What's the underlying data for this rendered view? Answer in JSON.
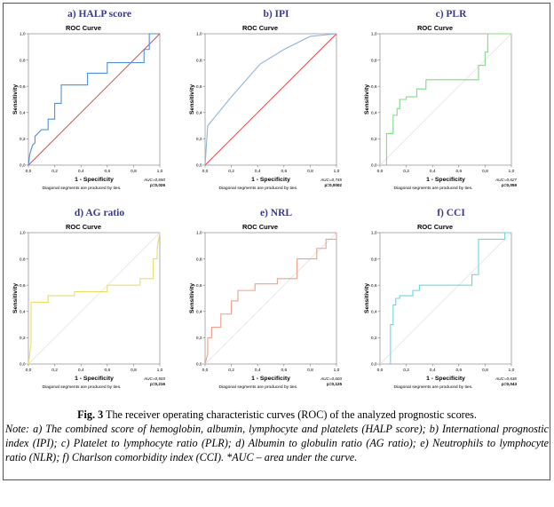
{
  "figure": {
    "caption_label": "Fig. 3",
    "caption_title": " The receiver operating characteristic curves (ROC) of the analyzed prognostic scores.",
    "note": "Note: a) The combined score of hemoglobin, albumin, lymphocyte and platelets (HALP score); b) International prognostic index (IPI); c) Platelet to lymphocyte ratio (PLR); d) Albumin to globulin ratio (AG ratio); e) Neutrophils to lymphocyte ratio (NLR); f) Charlson comorbidity index (CCI). *AUC – area under the curve."
  },
  "chart_data": [
    {
      "type": "line",
      "panel_label": "a) HALP score",
      "title": "ROC Curve",
      "xlabel": "1 - Specificity",
      "ylabel": "Sensitivity",
      "xlim": [
        0,
        1
      ],
      "ylim": [
        0,
        1
      ],
      "xticks": [
        "0,0",
        "0,2",
        "0,4",
        "0,6",
        "0,8",
        "1,0"
      ],
      "yticks": [
        "0,0",
        "0,2",
        "0,4",
        "0,6",
        "0,8",
        "1,0"
      ],
      "footnote": "Diagonal segments are produced by ties.",
      "auc_label": "AUC=0,650",
      "p_label": "p=0,026",
      "colors": {
        "curve": "#4f8fd6",
        "reference": "#e03a3a"
      },
      "reference_line": true,
      "series": [
        {
          "x": [
            0,
            0.01,
            0.03,
            0.05,
            0.05,
            0.08,
            0.1,
            0.15,
            0.15,
            0.2,
            0.2,
            0.25,
            0.25,
            0.45,
            0.45,
            0.6,
            0.6,
            0.88,
            0.88,
            0.92,
            0.92,
            1.0
          ],
          "y": [
            0,
            0.08,
            0.15,
            0.17,
            0.22,
            0.25,
            0.27,
            0.27,
            0.35,
            0.35,
            0.47,
            0.47,
            0.61,
            0.61,
            0.7,
            0.7,
            0.78,
            0.78,
            0.88,
            0.88,
            1.0,
            1.0
          ]
        }
      ]
    },
    {
      "type": "line",
      "panel_label": "b) IPI",
      "title": "ROC Curve",
      "xlabel": "1 - Specificity",
      "ylabel": "Sensitivity",
      "xlim": [
        0,
        1
      ],
      "ylim": [
        0,
        1
      ],
      "xticks": [
        "0,0",
        "0,2",
        "0,4",
        "0,6",
        "0,8",
        "1,0"
      ],
      "yticks": [
        "0,0",
        "0,2",
        "0,4",
        "0,6",
        "0,8",
        "1,0"
      ],
      "footnote": "Diagonal segments are produced by ties.",
      "auc_label": "AUC=0,745",
      "p_label": "p=0,0002",
      "colors": {
        "curve": "#8fb4dc",
        "reference": "#e03a3a"
      },
      "reference_line": true,
      "series": [
        {
          "x": [
            0,
            0.02,
            0.2,
            0.42,
            0.6,
            0.8,
            1.0
          ],
          "y": [
            0,
            0.3,
            0.52,
            0.77,
            0.88,
            0.98,
            1.0
          ]
        }
      ]
    },
    {
      "type": "line",
      "panel_label": "c) PLR",
      "title": "ROC Curve",
      "xlabel": "1 - Specificity",
      "ylabel": "Sensitivity",
      "xlim": [
        0,
        1
      ],
      "ylim": [
        0,
        1
      ],
      "xticks": [
        "0,0",
        "0,2",
        "0,4",
        "0,6",
        "0,8",
        "1,0"
      ],
      "yticks": [
        "0,0",
        "0,2",
        "0,4",
        "0,6",
        "0,8",
        "1,0"
      ],
      "footnote": "Diagonal segments are produced by ties.",
      "auc_label": "AUC=0,627",
      "p_label": "p=0,059",
      "colors": {
        "curve": "#7fdc82",
        "reference": "#e6e6e6"
      },
      "reference_line": true,
      "series": [
        {
          "x": [
            0.05,
            0.05,
            0.1,
            0.1,
            0.13,
            0.13,
            0.15,
            0.15,
            0.2,
            0.2,
            0.28,
            0.28,
            0.35,
            0.35,
            0.75,
            0.75,
            0.8,
            0.8,
            0.82,
            0.82,
            1.0
          ],
          "y": [
            0,
            0.24,
            0.24,
            0.38,
            0.38,
            0.43,
            0.43,
            0.5,
            0.5,
            0.52,
            0.52,
            0.58,
            0.58,
            0.65,
            0.65,
            0.76,
            0.76,
            0.86,
            0.86,
            1.0,
            1.0
          ]
        }
      ]
    },
    {
      "type": "line",
      "panel_label": "d) AG ratio",
      "title": "ROC Curve",
      "xlabel": "1 - Specificity",
      "ylabel": "Sensitivity",
      "xlim": [
        0,
        1
      ],
      "ylim": [
        0,
        1
      ],
      "xticks": [
        "0,0",
        "0,2",
        "0,4",
        "0,6",
        "0,8",
        "1,0"
      ],
      "yticks": [
        "0,0",
        "0,2",
        "0,4",
        "0,6",
        "0,8",
        "1,0"
      ],
      "footnote": "Diagonal segments are produced by ties.",
      "auc_label": "AUC=0,503",
      "p_label": "p=0,216",
      "colors": {
        "curve": "#eddc6a",
        "reference": "#e6e6e6"
      },
      "reference_line": true,
      "series": [
        {
          "x": [
            0,
            0.02,
            0.02,
            0.15,
            0.15,
            0.35,
            0.35,
            0.6,
            0.6,
            0.85,
            0.85,
            0.95,
            0.95,
            0.98,
            0.98,
            1.0
          ],
          "y": [
            0,
            0.15,
            0.47,
            0.47,
            0.52,
            0.52,
            0.55,
            0.55,
            0.6,
            0.6,
            0.65,
            0.65,
            0.8,
            0.8,
            0.88,
            1.0
          ]
        }
      ]
    },
    {
      "type": "line",
      "panel_label": "e) NRL",
      "title": "ROC Curve",
      "xlabel": "1 - Specificity",
      "ylabel": "Sensitivity",
      "xlim": [
        0,
        1
      ],
      "ylim": [
        0,
        1
      ],
      "xticks": [
        "0,0",
        "0,2",
        "0,4",
        "0,6",
        "0,8",
        "1,0"
      ],
      "yticks": [
        "0,0",
        "0,2",
        "0,4",
        "0,6",
        "0,8",
        "1,0"
      ],
      "footnote": "Diagonal segments are produced by ties.",
      "auc_label": "AUC=0,603",
      "p_label": "p=0,125",
      "colors": {
        "curve": "#eea08a",
        "reference": "#e6e6e6"
      },
      "reference_line": true,
      "series": [
        {
          "x": [
            0,
            0.02,
            0.02,
            0.05,
            0.05,
            0.12,
            0.12,
            0.2,
            0.2,
            0.25,
            0.25,
            0.38,
            0.38,
            0.55,
            0.55,
            0.7,
            0.7,
            0.85,
            0.85,
            0.92,
            0.92,
            1.0,
            1.0
          ],
          "y": [
            0,
            0.08,
            0.2,
            0.2,
            0.28,
            0.28,
            0.38,
            0.38,
            0.48,
            0.48,
            0.56,
            0.56,
            0.61,
            0.61,
            0.65,
            0.65,
            0.8,
            0.8,
            0.88,
            0.88,
            0.95,
            0.95,
            1.0
          ]
        }
      ]
    },
    {
      "type": "line",
      "panel_label": "f) CCI",
      "title": "ROC Curve",
      "xlabel": "1 - Specificity",
      "ylabel": "Sensitivity",
      "xlim": [
        0,
        1
      ],
      "ylim": [
        0,
        1
      ],
      "xticks": [
        "0,0",
        "0,2",
        "0,4",
        "0,6",
        "0,8",
        "1,0"
      ],
      "yticks": [
        "0,0",
        "0,2",
        "0,4",
        "0,6",
        "0,8",
        "1,0"
      ],
      "footnote": "Diagonal segments are produced by ties.",
      "auc_label": "AUC=0,636",
      "p_label": "p=0,043",
      "colors": {
        "curve": "#6ad6df",
        "reference": "#e6e6e6"
      },
      "reference_line": true,
      "series": [
        {
          "x": [
            0.08,
            0.08,
            0.1,
            0.1,
            0.12,
            0.12,
            0.15,
            0.15,
            0.25,
            0.25,
            0.3,
            0.3,
            0.7,
            0.7,
            0.75,
            0.75,
            0.95,
            0.95,
            1.0
          ],
          "y": [
            0,
            0.3,
            0.3,
            0.45,
            0.45,
            0.5,
            0.5,
            0.52,
            0.52,
            0.56,
            0.56,
            0.6,
            0.6,
            0.68,
            0.68,
            0.95,
            0.95,
            1.0,
            1.0
          ]
        }
      ]
    }
  ]
}
